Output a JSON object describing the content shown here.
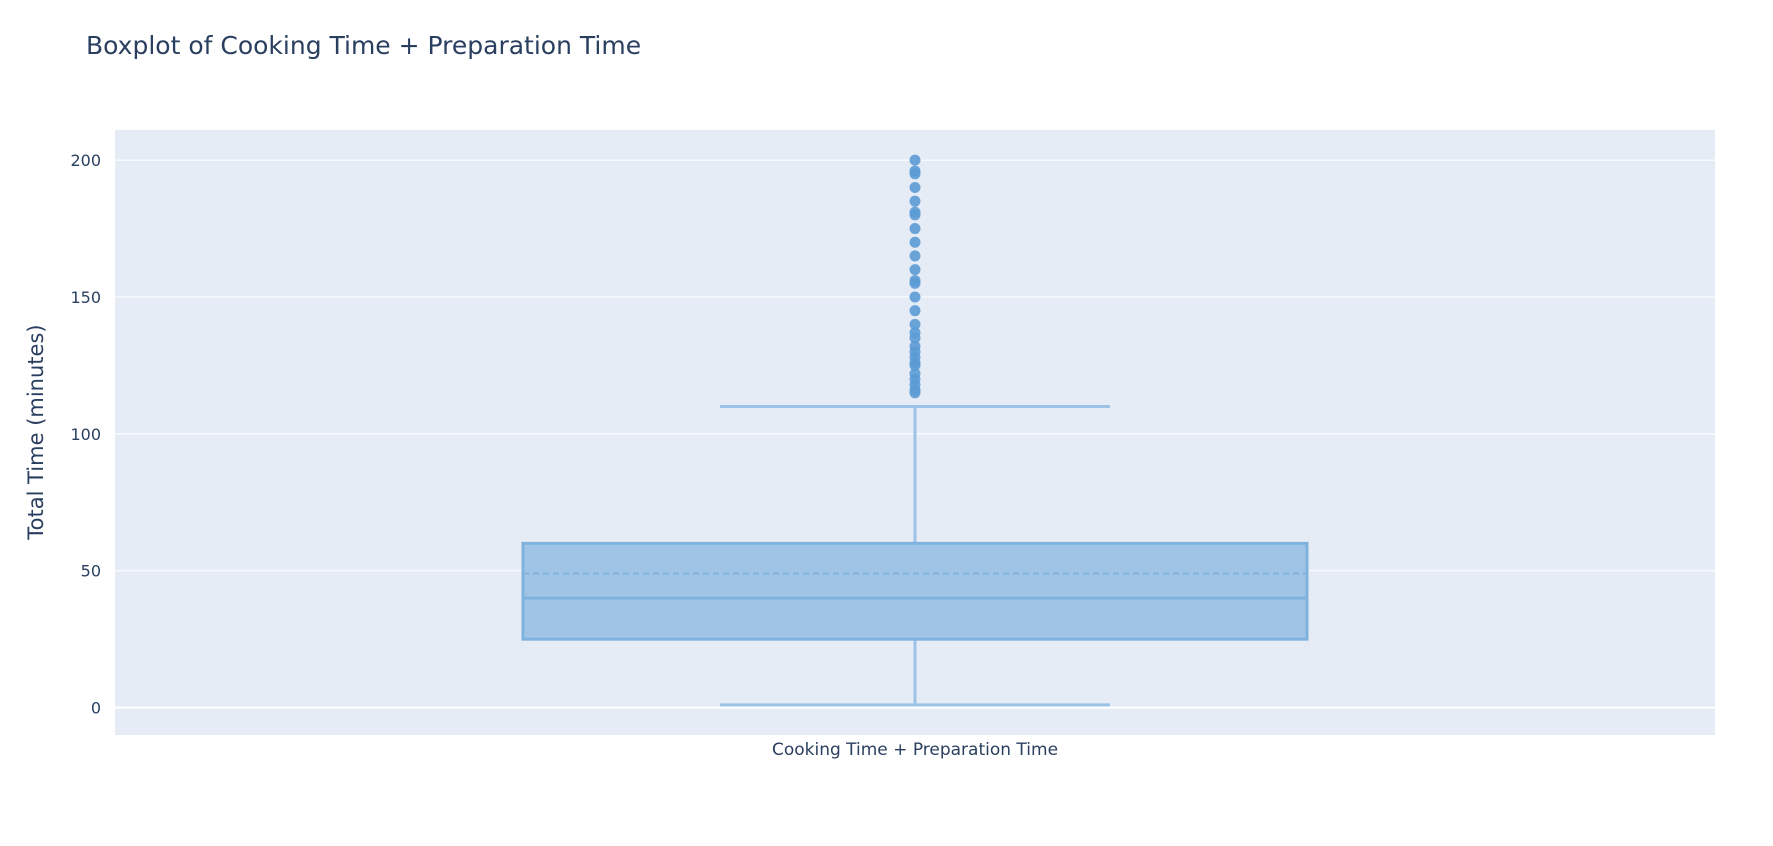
{
  "chart_data": {
    "type": "box",
    "title": "Boxplot of Cooking Time + Preparation Time",
    "xlabel": "",
    "ylabel": "Total Time (minutes)",
    "categories": [
      "Cooking Time + Preparation Time"
    ],
    "ylim": [
      -10,
      211
    ],
    "yticks": [
      0,
      50,
      100,
      150,
      200
    ],
    "grid": true,
    "box": {
      "min": 1,
      "q1": 25,
      "median": 40,
      "mean": 49,
      "q3": 60,
      "upper_fence": 110,
      "outliers": [
        115,
        116,
        118,
        120,
        122,
        125,
        126,
        128,
        130,
        132,
        135,
        137,
        140,
        145,
        150,
        155,
        156,
        160,
        165,
        170,
        175,
        180,
        181,
        185,
        190,
        195,
        196,
        200
      ]
    },
    "colors": {
      "plot_bg": "#e5ecf6",
      "grid": "#ffffff",
      "box_fill": "#a0c4e6",
      "box_line": "#7fb2dd",
      "whisker": "#9cc3e6",
      "outlier": "#5b9bd5",
      "text": "#2a3f5f"
    }
  }
}
